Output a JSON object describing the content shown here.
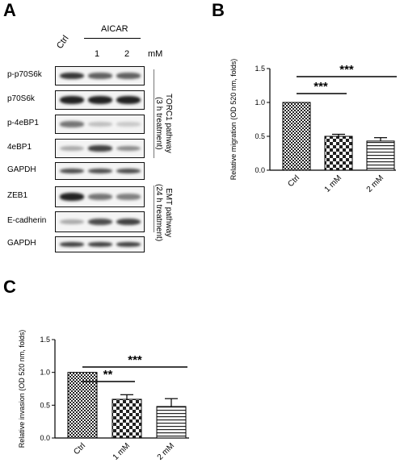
{
  "panels": {
    "a": "A",
    "b": "B",
    "c": "C"
  },
  "western_blot": {
    "lanes": {
      "ctrl": "Ctrl",
      "treatment": "AICAR",
      "dose1": "1",
      "dose2": "2",
      "unit": "mM"
    },
    "proteins": [
      "p-p70S6k",
      "p70S6k",
      "p-4eBP1",
      "4eBP1",
      "GAPDH",
      "ZEB1",
      "E-cadherin",
      "GAPDH"
    ],
    "groups": {
      "torc1": {
        "line1": "TORC1 pathway",
        "line2": "(3 h treatment)"
      },
      "emt": {
        "line1": "EMT pathway",
        "line2": "(24 h treatment)"
      }
    }
  },
  "chart_data": [
    {
      "type": "bar",
      "panel": "B",
      "categories": [
        "Ctrl",
        "1 mM",
        "2 mM"
      ],
      "values": [
        1.0,
        0.5,
        0.43
      ],
      "errors": [
        0.0,
        0.03,
        0.05
      ],
      "ylabel": "Relative migration (OD 520 nm, folds)",
      "ylim": [
        0,
        1.5
      ],
      "yticks": [
        "0.0",
        "0.5",
        "1.0",
        "1.5"
      ],
      "significance": [
        {
          "from": "Ctrl",
          "to": "1 mM",
          "label": "***"
        },
        {
          "from": "Ctrl",
          "to": "2 mM",
          "label": "***"
        }
      ]
    },
    {
      "type": "bar",
      "panel": "C",
      "categories": [
        "Ctrl",
        "1 mM",
        "2 mM"
      ],
      "values": [
        1.0,
        0.59,
        0.48
      ],
      "errors": [
        0.0,
        0.07,
        0.12
      ],
      "ylabel": "Relative invasion (OD 520 nm, folds)",
      "ylim": [
        0,
        1.5
      ],
      "yticks": [
        "0.0",
        "0.5",
        "1.0",
        "1.5"
      ],
      "significance": [
        {
          "from": "Ctrl",
          "to": "1 mM",
          "label": "**"
        },
        {
          "from": "Ctrl",
          "to": "2 mM",
          "label": "***"
        }
      ]
    }
  ]
}
